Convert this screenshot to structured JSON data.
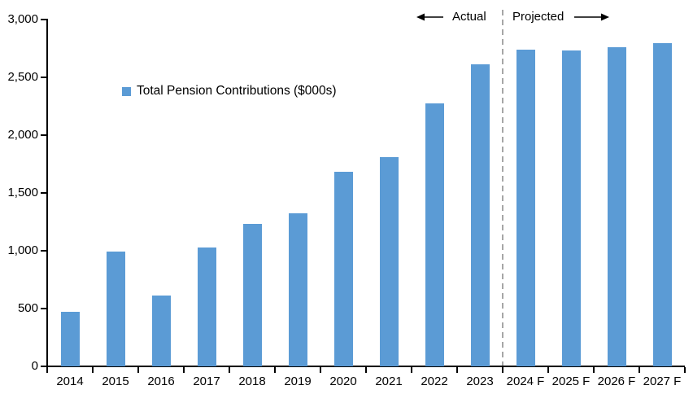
{
  "chart_data": {
    "type": "bar",
    "title": "",
    "legend_label": "Total Pension Contributions ($000s)",
    "categories": [
      "2014",
      "2015",
      "2016",
      "2017",
      "2018",
      "2019",
      "2020",
      "2021",
      "2022",
      "2023",
      "2024 F",
      "2025 F",
      "2026 F",
      "2027 F"
    ],
    "values": [
      470,
      990,
      610,
      1030,
      1230,
      1320,
      1680,
      1810,
      2270,
      2610,
      2740,
      2730,
      2760,
      2790
    ],
    "xlabel": "",
    "ylabel": "",
    "ylim": [
      0,
      3000
    ],
    "y_ticks": [
      {
        "value": 0,
        "label": "0"
      },
      {
        "value": 500,
        "label": "500"
      },
      {
        "value": 1000,
        "label": "1,000"
      },
      {
        "value": 1500,
        "label": "1,500"
      },
      {
        "value": 2000,
        "label": "2,000"
      },
      {
        "value": 2500,
        "label": "2,500"
      },
      {
        "value": 3000,
        "label": "3,000"
      }
    ],
    "grid": false,
    "legend_position": "inside-upper-left",
    "bar_color": "#5B9BD5",
    "axis_color": "#000000",
    "divider_color": "#A6A6A6",
    "annotations": {
      "actual_label": "Actual",
      "projected_label": "Projected",
      "divider_after_category": "2023",
      "actual_arrow_direction": "left",
      "projected_arrow_direction": "right"
    }
  }
}
